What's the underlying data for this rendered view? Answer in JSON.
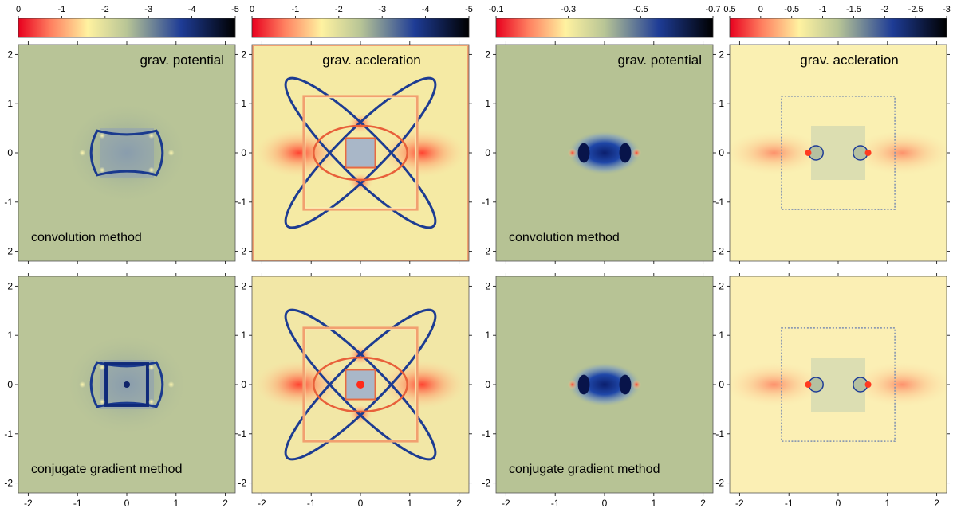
{
  "chart_data": {
    "type": "heatmap",
    "xlim": [
      -2.2,
      2.2
    ],
    "ylim": [
      -2.2,
      2.2
    ],
    "xticks": [
      "-2",
      "-1",
      "0",
      "1",
      "2"
    ],
    "yticks": [
      "2",
      "1",
      "0",
      "-1",
      "-2"
    ],
    "colorbars": [
      {
        "ticks": [
          "0",
          "-1",
          "-2",
          "-3",
          "-4",
          "-5"
        ]
      },
      {
        "ticks": [
          "0",
          "-1",
          "-2",
          "-3",
          "-4",
          "-5"
        ]
      },
      {
        "ticks": [
          "-0.1",
          "-0.3",
          "-0.5",
          "-0.7"
        ]
      },
      {
        "ticks": [
          "0.5",
          "0",
          "-0.5",
          "-1",
          "-1.5",
          "-2",
          "-2.5",
          "-3"
        ]
      }
    ],
    "colormap": [
      "#e8001e",
      "#ff8060",
      "#fff2a0",
      "#b8c596",
      "#1e3c96",
      "#000000"
    ],
    "panels": [
      {
        "title": "grav. potential",
        "method": "convolution method"
      },
      {
        "title": "grav. accleration",
        "method": ""
      },
      {
        "title": "grav. potential",
        "method": "convolution method"
      },
      {
        "title": "grav. accleration",
        "method": ""
      },
      {
        "title": "",
        "method": "conjugate gradient method"
      },
      {
        "title": "",
        "method": ""
      },
      {
        "title": "",
        "method": "conjugate gradient method"
      },
      {
        "title": "",
        "method": ""
      }
    ]
  }
}
